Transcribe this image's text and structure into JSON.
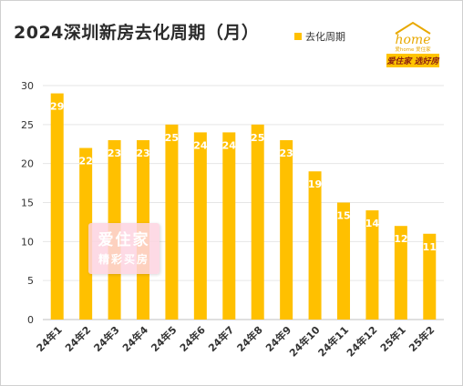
{
  "chart_data": {
    "type": "bar",
    "title": "2024深圳新房去化周期（月）",
    "categories": [
      "24年1",
      "24年2",
      "24年3",
      "24年4",
      "24年5",
      "24年6",
      "24年7",
      "24年8",
      "24年9",
      "24年10",
      "24年11",
      "24年12",
      "25年1",
      "25年2"
    ],
    "series": [
      {
        "name": "去化周期",
        "values": [
          29,
          22,
          23,
          23,
          25,
          24,
          24,
          25,
          23,
          19,
          15,
          14,
          12,
          11
        ]
      }
    ],
    "data_labels": [
      "29",
      "22",
      "23",
      "23",
      "25",
      "24",
      "24",
      "25",
      "23",
      "19",
      "15",
      "14",
      "12",
      "11"
    ],
    "y_ticks": [
      "0",
      "5",
      "10",
      "15",
      "20",
      "25",
      "30"
    ],
    "ylim": [
      0,
      30
    ],
    "grid": true,
    "legend": "top-right",
    "bar_color": "#FFC000"
  },
  "logo": {
    "wordmark": "home",
    "subtitle": "爱home 爱住家",
    "slogan": "爱住家 选好房"
  },
  "watermark": {
    "line1": "爱住家",
    "line2": "精彩买房"
  }
}
